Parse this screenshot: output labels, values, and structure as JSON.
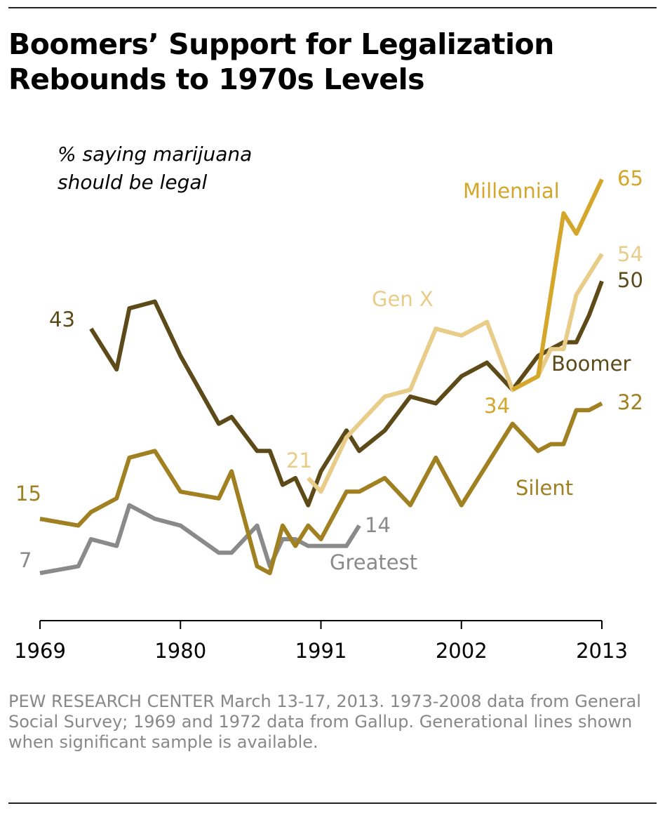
{
  "chart_data": {
    "type": "line",
    "title": "Boomers’ Support for Legalization Rebounds to 1970s Levels",
    "title_lines": [
      "Boomers’ Support for Legalization",
      "Rebounds to 1970s Levels"
    ],
    "subtitle_lines": [
      "% saying marijuana",
      "should be legal"
    ],
    "xlabel": "",
    "ylabel": "",
    "x_ticks": [
      "1969",
      "1980",
      "1991",
      "2002",
      "2013"
    ],
    "xlim": [
      1969,
      2013
    ],
    "ylim": [
      0,
      70
    ],
    "grid": false,
    "series": [
      {
        "name": "Greatest",
        "color": "#8a8a8a",
        "x": [
          1969,
          1972,
          1973,
          1975,
          1976,
          1978,
          1980,
          1983,
          1984,
          1986,
          1987,
          1988,
          1989,
          1990,
          1991,
          1993,
          1994
        ],
        "values": [
          7,
          8,
          12,
          11,
          17,
          15,
          14,
          10,
          10,
          14,
          8,
          12,
          12,
          11,
          11,
          11,
          14
        ],
        "start_label": "7",
        "end_label": "14"
      },
      {
        "name": "Silent",
        "color": "#a08020",
        "x": [
          1969,
          1972,
          1973,
          1975,
          1976,
          1978,
          1980,
          1983,
          1984,
          1986,
          1987,
          1988,
          1989,
          1990,
          1991,
          1993,
          1994,
          1996,
          1998,
          2000,
          2002,
          2004,
          2006,
          2008,
          2009,
          2010,
          2011,
          2012,
          2013
        ],
        "values": [
          15,
          14,
          16,
          18,
          24,
          25,
          19,
          18,
          22,
          8,
          7,
          14,
          11,
          14,
          12,
          19,
          19,
          21,
          17,
          24,
          17,
          23,
          29,
          25,
          26,
          26,
          31,
          31,
          32
        ],
        "start_label": "15",
        "end_label": "32"
      },
      {
        "name": "Boomer",
        "color": "#5c4a18",
        "x": [
          1973,
          1975,
          1976,
          1978,
          1980,
          1983,
          1984,
          1986,
          1987,
          1988,
          1989,
          1990,
          1991,
          1993,
          1994,
          1996,
          1998,
          2000,
          2002,
          2004,
          2006,
          2008,
          2009,
          2010,
          2011,
          2012,
          2013
        ],
        "values": [
          43,
          37,
          46,
          47,
          39,
          29,
          30,
          25,
          25,
          20,
          21,
          17,
          22,
          28,
          25,
          28,
          33,
          32,
          36,
          38,
          34,
          39,
          40,
          41,
          41,
          45,
          50
        ],
        "start_label": "43",
        "end_label": "50"
      },
      {
        "name": "Gen X",
        "color": "#e8cc88",
        "x": [
          1990,
          1991,
          1993,
          1994,
          1996,
          1998,
          2000,
          2002,
          2004,
          2006,
          2008,
          2009,
          2010,
          2011,
          2012,
          2013
        ],
        "values": [
          21,
          19,
          27,
          29,
          33,
          34,
          43,
          42,
          44,
          34,
          36,
          40,
          40,
          48,
          51,
          54
        ],
        "start_label": "21",
        "end_label": "54"
      },
      {
        "name": "Millennial",
        "color": "#d4a62a",
        "x": [
          2006,
          2008,
          2009,
          2010,
          2011,
          2012,
          2013
        ],
        "values": [
          34,
          36,
          48,
          60,
          57,
          61,
          65
        ],
        "start_label": "34",
        "end_label": "65"
      }
    ],
    "footnote": "PEW RESEARCH  CENTER March 13-17, 2013. 1973-2008 data from General Social Survey;  1969 and 1972 data from Gallup. Generational lines shown when significant sample is available."
  }
}
